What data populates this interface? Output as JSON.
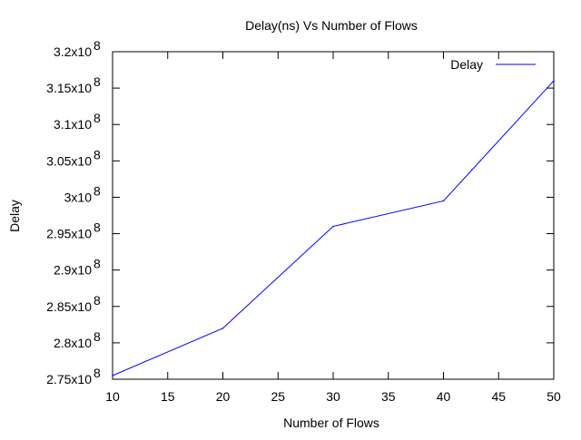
{
  "chart_data": {
    "type": "line",
    "title": "Delay(ns)  Vs Number of Flows",
    "xlabel": "Number of Flows",
    "ylabel": "Delay",
    "xlim": [
      10,
      50
    ],
    "ylim": [
      275000000,
      320000000
    ],
    "x_ticks": [
      {
        "value": 10,
        "label": "10"
      },
      {
        "value": 15,
        "label": "15"
      },
      {
        "value": 20,
        "label": "20"
      },
      {
        "value": 25,
        "label": "25"
      },
      {
        "value": 30,
        "label": "30"
      },
      {
        "value": 35,
        "label": "35"
      },
      {
        "value": 40,
        "label": "40"
      },
      {
        "value": 45,
        "label": "45"
      },
      {
        "value": 50,
        "label": "50"
      }
    ],
    "y_ticks": [
      {
        "value": 275000000,
        "mantissa": "2.75x10",
        "exponent": "8"
      },
      {
        "value": 280000000,
        "mantissa": "2.8x10",
        "exponent": "8"
      },
      {
        "value": 285000000,
        "mantissa": "2.85x10",
        "exponent": "8"
      },
      {
        "value": 290000000,
        "mantissa": "2.9x10",
        "exponent": "8"
      },
      {
        "value": 295000000,
        "mantissa": "2.95x10",
        "exponent": "8"
      },
      {
        "value": 300000000,
        "mantissa": "3x10",
        "exponent": "8"
      },
      {
        "value": 305000000,
        "mantissa": "3.05x10",
        "exponent": "8"
      },
      {
        "value": 310000000,
        "mantissa": "3.1x10",
        "exponent": "8"
      },
      {
        "value": 315000000,
        "mantissa": "3.15x10",
        "exponent": "8"
      },
      {
        "value": 320000000,
        "mantissa": "3.2x10",
        "exponent": "8"
      }
    ],
    "grid": false,
    "legend_position": "top-right",
    "series": [
      {
        "name": "Delay",
        "color": "#0000ff",
        "x": [
          10,
          20,
          30,
          40,
          50
        ],
        "y": [
          275500000,
          282000000,
          296000000,
          299500000,
          316000000
        ]
      }
    ]
  }
}
